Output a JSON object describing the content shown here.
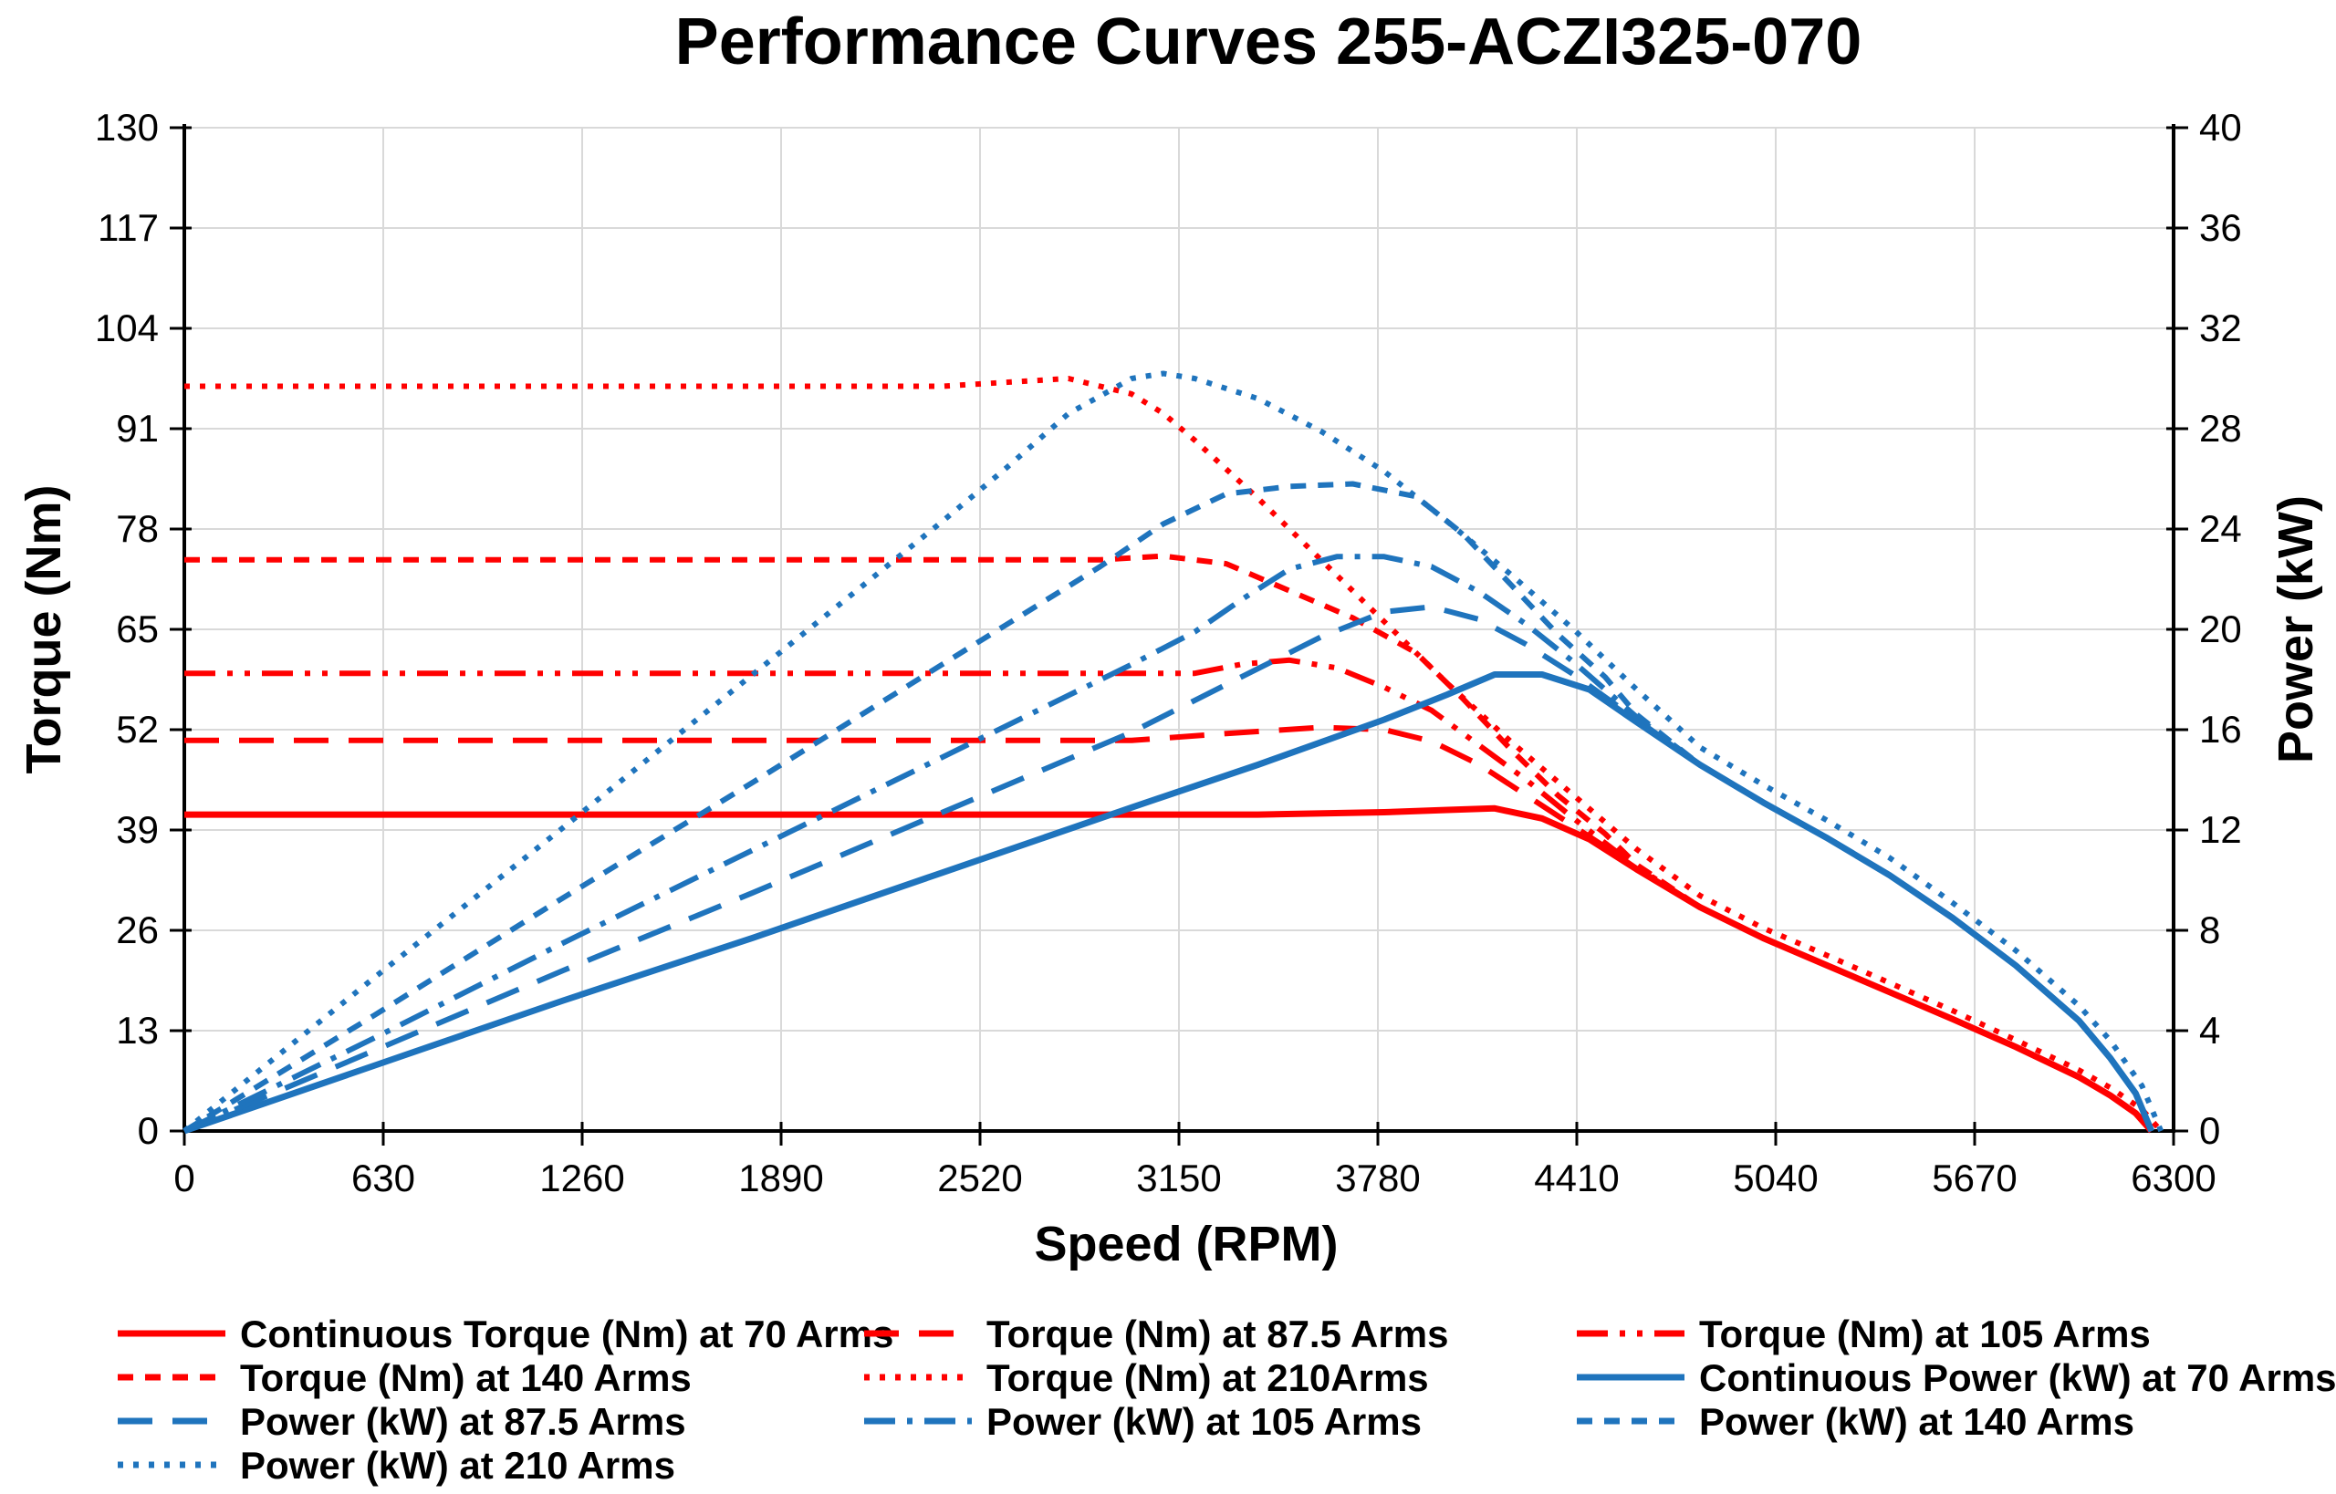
{
  "page": {
    "title": "Performance Curves 255-ACZI325-070"
  },
  "chart_data": {
    "type": "line",
    "title": "Performance Curves 255-ACZI325-070",
    "xlabel": "Speed (RPM)",
    "x_min": 0,
    "x_max": 6300,
    "x_ticks": [
      0,
      630,
      1260,
      1890,
      2520,
      3150,
      3780,
      4410,
      5040,
      5670,
      6300
    ],
    "y_left": {
      "label": "Torque (Nm)",
      "min": 0,
      "max": 130,
      "ticks": [
        0,
        13,
        26,
        39,
        52,
        65,
        78,
        91,
        104,
        117,
        130
      ]
    },
    "y_right": {
      "label": "Power (kW)",
      "min": 0,
      "max": 40,
      "ticks": [
        0,
        4,
        8,
        12,
        16,
        20,
        24,
        28,
        32,
        36,
        40
      ]
    },
    "grid": true,
    "legend_position": "bottom",
    "colors": {
      "red": "#FF0000",
      "blue": "#1F74BD",
      "grid": "#D9D9D9",
      "axis": "#000000"
    },
    "series": [
      {
        "id": "torque-70",
        "name": "Continuous Torque (Nm) at 70 Arms",
        "color": "red",
        "axis": "left",
        "dash": "solid",
        "width": 7,
        "points": [
          [
            0,
            41
          ],
          [
            600,
            41
          ],
          [
            1200,
            41
          ],
          [
            1800,
            41
          ],
          [
            2400,
            41
          ],
          [
            3000,
            41
          ],
          [
            3400,
            41
          ],
          [
            3800,
            41.3
          ],
          [
            4000,
            41.6
          ],
          [
            4150,
            41.8
          ],
          [
            4300,
            40.5
          ],
          [
            4450,
            37.8
          ],
          [
            4600,
            33.9
          ],
          [
            4800,
            29
          ],
          [
            5000,
            25
          ],
          [
            5200,
            21.5
          ],
          [
            5400,
            18
          ],
          [
            5600,
            14.5
          ],
          [
            5800,
            10.9
          ],
          [
            6000,
            7
          ],
          [
            6100,
            4.6
          ],
          [
            6180,
            2.3
          ],
          [
            6230,
            0
          ]
        ]
      },
      {
        "id": "torque-87-5",
        "name": "Torque (Nm) at 87.5 Arms",
        "color": "red",
        "axis": "left",
        "dash": "long-dash",
        "width": 6,
        "points": [
          [
            0,
            50.6
          ],
          [
            600,
            50.6
          ],
          [
            1200,
            50.6
          ],
          [
            1800,
            50.6
          ],
          [
            2400,
            50.6
          ],
          [
            3000,
            50.6
          ],
          [
            3300,
            51.5
          ],
          [
            3600,
            52.3
          ],
          [
            3800,
            52
          ],
          [
            3950,
            50.5
          ],
          [
            4100,
            47.5
          ],
          [
            4250,
            43.5
          ],
          [
            4400,
            39.5
          ],
          [
            4500,
            36.8
          ],
          [
            4600,
            34
          ],
          [
            4800,
            29
          ],
          [
            5000,
            25
          ],
          [
            5200,
            21.5
          ],
          [
            5400,
            18
          ],
          [
            5600,
            14.5
          ],
          [
            5800,
            10.9
          ],
          [
            6000,
            7
          ],
          [
            6100,
            4.6
          ],
          [
            6180,
            2.3
          ],
          [
            6230,
            0
          ]
        ]
      },
      {
        "id": "torque-105",
        "name": "Torque (Nm) at 105 Arms",
        "color": "red",
        "axis": "left",
        "dash": "dash-dot-dot",
        "width": 6,
        "points": [
          [
            0,
            59.3
          ],
          [
            600,
            59.3
          ],
          [
            1200,
            59.3
          ],
          [
            1800,
            59.3
          ],
          [
            2400,
            59.3
          ],
          [
            3000,
            59.3
          ],
          [
            3200,
            59.3
          ],
          [
            3350,
            60.5
          ],
          [
            3500,
            61
          ],
          [
            3650,
            60
          ],
          [
            3800,
            57.5
          ],
          [
            3950,
            54.5
          ],
          [
            4100,
            50
          ],
          [
            4250,
            45.5
          ],
          [
            4400,
            40.5
          ],
          [
            4500,
            37.3
          ],
          [
            4600,
            34.2
          ],
          [
            4800,
            29
          ],
          [
            5000,
            25
          ],
          [
            5200,
            21.5
          ],
          [
            5400,
            18
          ],
          [
            5600,
            14.5
          ],
          [
            5800,
            10.9
          ],
          [
            6000,
            7
          ],
          [
            6100,
            4.6
          ],
          [
            6180,
            2.3
          ],
          [
            6230,
            0
          ]
        ]
      },
      {
        "id": "torque-140",
        "name": "Torque (Nm) at 140 Arms",
        "color": "red",
        "axis": "left",
        "dash": "short-dash",
        "width": 6,
        "points": [
          [
            0,
            74
          ],
          [
            600,
            74
          ],
          [
            1200,
            74
          ],
          [
            1800,
            74
          ],
          [
            2400,
            74
          ],
          [
            2900,
            74
          ],
          [
            3100,
            74.5
          ],
          [
            3300,
            73.5
          ],
          [
            3500,
            70
          ],
          [
            3700,
            66.5
          ],
          [
            3900,
            62
          ],
          [
            4050,
            56
          ],
          [
            4200,
            49.5
          ],
          [
            4350,
            43.5
          ],
          [
            4500,
            38.5
          ],
          [
            4600,
            34.5
          ],
          [
            4800,
            29
          ],
          [
            5000,
            25
          ],
          [
            5200,
            21.5
          ],
          [
            5400,
            18
          ],
          [
            5600,
            14.5
          ],
          [
            5800,
            10.9
          ],
          [
            6000,
            7
          ],
          [
            6100,
            4.6
          ],
          [
            6180,
            2.3
          ],
          [
            6230,
            0
          ]
        ]
      },
      {
        "id": "torque-210",
        "name": "Torque (Nm) at 210Arms",
        "color": "red",
        "axis": "left",
        "dash": "dot",
        "width": 6,
        "points": [
          [
            0,
            96.5
          ],
          [
            600,
            96.5
          ],
          [
            1200,
            96.5
          ],
          [
            1800,
            96.5
          ],
          [
            2400,
            96.5
          ],
          [
            2600,
            97
          ],
          [
            2800,
            97.5
          ],
          [
            3000,
            95.5
          ],
          [
            3100,
            93
          ],
          [
            3200,
            89.5
          ],
          [
            3400,
            82
          ],
          [
            3600,
            74
          ],
          [
            3800,
            66
          ],
          [
            4000,
            58
          ],
          [
            4200,
            50.5
          ],
          [
            4400,
            43.5
          ],
          [
            4600,
            36.5
          ],
          [
            4800,
            30.5
          ],
          [
            5000,
            26.3
          ],
          [
            5200,
            22.8
          ],
          [
            5400,
            19.2
          ],
          [
            5600,
            15.6
          ],
          [
            5800,
            11.8
          ],
          [
            6000,
            7.9
          ],
          [
            6100,
            5.6
          ],
          [
            6200,
            2.8
          ],
          [
            6260,
            0
          ]
        ]
      },
      {
        "id": "power-70",
        "name": "Continuous Power (kW) at 70 Arms",
        "color": "blue",
        "axis": "right",
        "dash": "solid",
        "width": 7,
        "points": [
          [
            0,
            0
          ],
          [
            600,
            2.6
          ],
          [
            1200,
            5.2
          ],
          [
            1800,
            7.7
          ],
          [
            2400,
            10.3
          ],
          [
            3000,
            12.9
          ],
          [
            3400,
            14.6
          ],
          [
            3800,
            16.4
          ],
          [
            4000,
            17.4
          ],
          [
            4150,
            18.2
          ],
          [
            4300,
            18.2
          ],
          [
            4450,
            17.6
          ],
          [
            4600,
            16.3
          ],
          [
            4800,
            14.6
          ],
          [
            5000,
            13.1
          ],
          [
            5200,
            11.7
          ],
          [
            5400,
            10.2
          ],
          [
            5600,
            8.5
          ],
          [
            5800,
            6.6
          ],
          [
            6000,
            4.4
          ],
          [
            6100,
            2.9
          ],
          [
            6180,
            1.5
          ],
          [
            6230,
            0
          ]
        ]
      },
      {
        "id": "power-87-5",
        "name": "Power (kW) at 87.5 Arms",
        "color": "blue",
        "axis": "right",
        "dash": "long-dash",
        "width": 6,
        "points": [
          [
            0,
            0
          ],
          [
            600,
            3.2
          ],
          [
            1200,
            6.4
          ],
          [
            1800,
            9.5
          ],
          [
            2400,
            12.7
          ],
          [
            3000,
            15.9
          ],
          [
            3300,
            17.8
          ],
          [
            3600,
            19.7
          ],
          [
            3800,
            20.7
          ],
          [
            3950,
            20.9
          ],
          [
            4100,
            20.4
          ],
          [
            4250,
            19.4
          ],
          [
            4400,
            18.2
          ],
          [
            4500,
            17.3
          ],
          [
            4600,
            16.4
          ],
          [
            4800,
            14.6
          ],
          [
            5000,
            13.1
          ],
          [
            5200,
            11.7
          ],
          [
            5400,
            10.2
          ],
          [
            5600,
            8.5
          ],
          [
            5800,
            6.6
          ],
          [
            6000,
            4.4
          ],
          [
            6100,
            2.9
          ],
          [
            6180,
            1.5
          ],
          [
            6230,
            0
          ]
        ]
      },
      {
        "id": "power-105",
        "name": "Power (kW) at 105 Arms",
        "color": "blue",
        "axis": "right",
        "dash": "dash-dot",
        "width": 6,
        "points": [
          [
            0,
            0
          ],
          [
            600,
            3.7
          ],
          [
            1200,
            7.5
          ],
          [
            1800,
            11.2
          ],
          [
            2400,
            14.9
          ],
          [
            3000,
            18.6
          ],
          [
            3200,
            19.9
          ],
          [
            3350,
            21.2
          ],
          [
            3500,
            22.4
          ],
          [
            3650,
            22.9
          ],
          [
            3800,
            22.9
          ],
          [
            3950,
            22.5
          ],
          [
            4100,
            21.5
          ],
          [
            4250,
            20.2
          ],
          [
            4400,
            18.7
          ],
          [
            4500,
            17.6
          ],
          [
            4600,
            16.5
          ],
          [
            4800,
            14.6
          ],
          [
            5000,
            13.1
          ],
          [
            5200,
            11.7
          ],
          [
            5400,
            10.2
          ],
          [
            5600,
            8.5
          ],
          [
            5800,
            6.6
          ],
          [
            6000,
            4.4
          ],
          [
            6100,
            2.9
          ],
          [
            6180,
            1.5
          ],
          [
            6230,
            0
          ]
        ]
      },
      {
        "id": "power-140",
        "name": "Power (kW) at 140 Arms",
        "color": "blue",
        "axis": "right",
        "dash": "short-dash",
        "width": 6,
        "points": [
          [
            0,
            0
          ],
          [
            600,
            4.6
          ],
          [
            1200,
            9.3
          ],
          [
            1800,
            13.9
          ],
          [
            2400,
            18.6
          ],
          [
            2900,
            22.5
          ],
          [
            3100,
            24.2
          ],
          [
            3300,
            25.4
          ],
          [
            3500,
            25.7
          ],
          [
            3700,
            25.8
          ],
          [
            3900,
            25.3
          ],
          [
            4050,
            23.8
          ],
          [
            4200,
            21.8
          ],
          [
            4350,
            19.8
          ],
          [
            4500,
            18.1
          ],
          [
            4600,
            16.6
          ],
          [
            4800,
            14.6
          ],
          [
            5000,
            13.1
          ],
          [
            5200,
            11.7
          ],
          [
            5400,
            10.2
          ],
          [
            5600,
            8.5
          ],
          [
            5800,
            6.6
          ],
          [
            6000,
            4.4
          ],
          [
            6100,
            2.9
          ],
          [
            6180,
            1.5
          ],
          [
            6230,
            0
          ]
        ]
      },
      {
        "id": "power-210",
        "name": "Power (kW) at 210 Arms",
        "color": "blue",
        "axis": "right",
        "dash": "dot",
        "width": 6,
        "points": [
          [
            0,
            0
          ],
          [
            600,
            6.1
          ],
          [
            1200,
            12.1
          ],
          [
            1800,
            18.2
          ],
          [
            2400,
            24.3
          ],
          [
            2600,
            26.4
          ],
          [
            2800,
            28.6
          ],
          [
            3000,
            30
          ],
          [
            3100,
            30.2
          ],
          [
            3200,
            30
          ],
          [
            3400,
            29.2
          ],
          [
            3600,
            27.9
          ],
          [
            3800,
            26.3
          ],
          [
            4000,
            24.3
          ],
          [
            4200,
            22.2
          ],
          [
            4400,
            20
          ],
          [
            4600,
            17.6
          ],
          [
            4800,
            15.3
          ],
          [
            5000,
            13.8
          ],
          [
            5200,
            12.4
          ],
          [
            5400,
            10.9
          ],
          [
            5600,
            9.1
          ],
          [
            5800,
            7.2
          ],
          [
            6000,
            5
          ],
          [
            6100,
            3.6
          ],
          [
            6200,
            1.8
          ],
          [
            6260,
            0
          ]
        ]
      }
    ]
  }
}
